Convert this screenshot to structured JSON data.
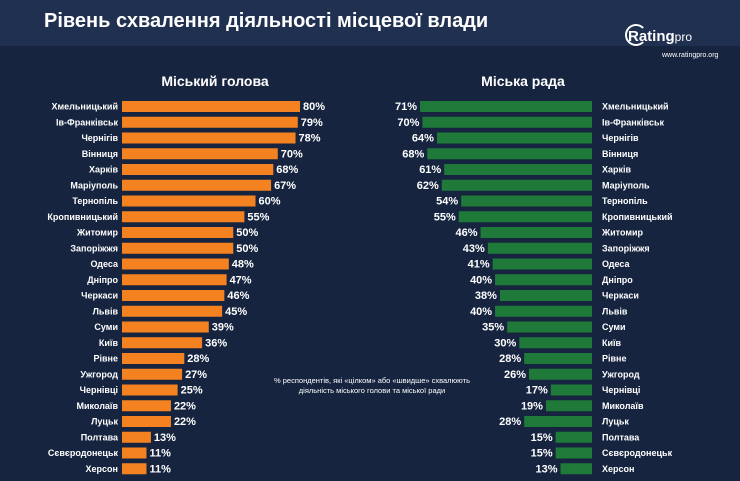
{
  "title": "Рівень схвалення діяльності місцевої влади",
  "logo": {
    "brand": "Rating",
    "suffix": "pro",
    "url": "www.ratingpro.org"
  },
  "note": "% респондентів, які «цілком» або «швидше» схвалюють діяльність міського голови та міської ради",
  "colors": {
    "mayor": "#f58220",
    "council": "#1f7a3a",
    "background": "#16243f",
    "text": "#ffffff"
  },
  "chart_data": [
    {
      "type": "bar",
      "orientation": "horizontal",
      "title": "Міський голова",
      "categories": [
        "Хмельницький",
        "Ів-Франківськ",
        "Чернігів",
        "Вінниця",
        "Харків",
        "Маріуполь",
        "Тернопіль",
        "Кропивницький",
        "Житомир",
        "Запоріжжя",
        "Одеса",
        "Дніпро",
        "Черкаси",
        "Львів",
        "Суми",
        "Київ",
        "Рівне",
        "Ужгород",
        "Чернівці",
        "Миколаїв",
        "Луцьк",
        "Полтава",
        "Сєвєродонецьк",
        "Херсон"
      ],
      "values": [
        80,
        79,
        78,
        70,
        68,
        67,
        60,
        55,
        50,
        50,
        48,
        47,
        46,
        45,
        39,
        36,
        28,
        27,
        25,
        22,
        22,
        13,
        11,
        11
      ],
      "value_labels": [
        "80%",
        "79%",
        "78%",
        "70%",
        "68%",
        "67%",
        "60%",
        "55%",
        "50%",
        "50%",
        "48%",
        "47%",
        "46%",
        "45%",
        "39%",
        "36%",
        "28%",
        "27%",
        "25%",
        "22%",
        "22%",
        "13%",
        "11%",
        "11%"
      ],
      "xlim": [
        0,
        80
      ],
      "grid": false
    },
    {
      "type": "bar",
      "orientation": "horizontal",
      "title": "Міська рада",
      "categories": [
        "Хмельницький",
        "Ів-Франківськ",
        "Чернігів",
        "Вінниця",
        "Харків",
        "Маріуполь",
        "Тернопіль",
        "Кропивницький",
        "Житомир",
        "Запоріжжя",
        "Одеса",
        "Дніпро",
        "Черкаси",
        "Львів",
        "Суми",
        "Київ",
        "Рівне",
        "Ужгород",
        "Чернівці",
        "Миколаїв",
        "Луцьк",
        "Полтава",
        "Сєвєродонецьк",
        "Херсон"
      ],
      "values": [
        71,
        70,
        64,
        68,
        61,
        62,
        54,
        55,
        46,
        43,
        41,
        40,
        38,
        40,
        35,
        30,
        28,
        26,
        17,
        19,
        28,
        15,
        15,
        13
      ],
      "value_labels": [
        "71%",
        "70%",
        "64%",
        "68%",
        "61%",
        "62%",
        "54%",
        "55%",
        "46%",
        "43%",
        "41%",
        "40%",
        "38%",
        "40%",
        "35%",
        "30%",
        "28%",
        "26%",
        "17%",
        "19%",
        "28%",
        "15%",
        "15%",
        "13%"
      ],
      "xlim": [
        0,
        71
      ],
      "grid": false
    }
  ]
}
